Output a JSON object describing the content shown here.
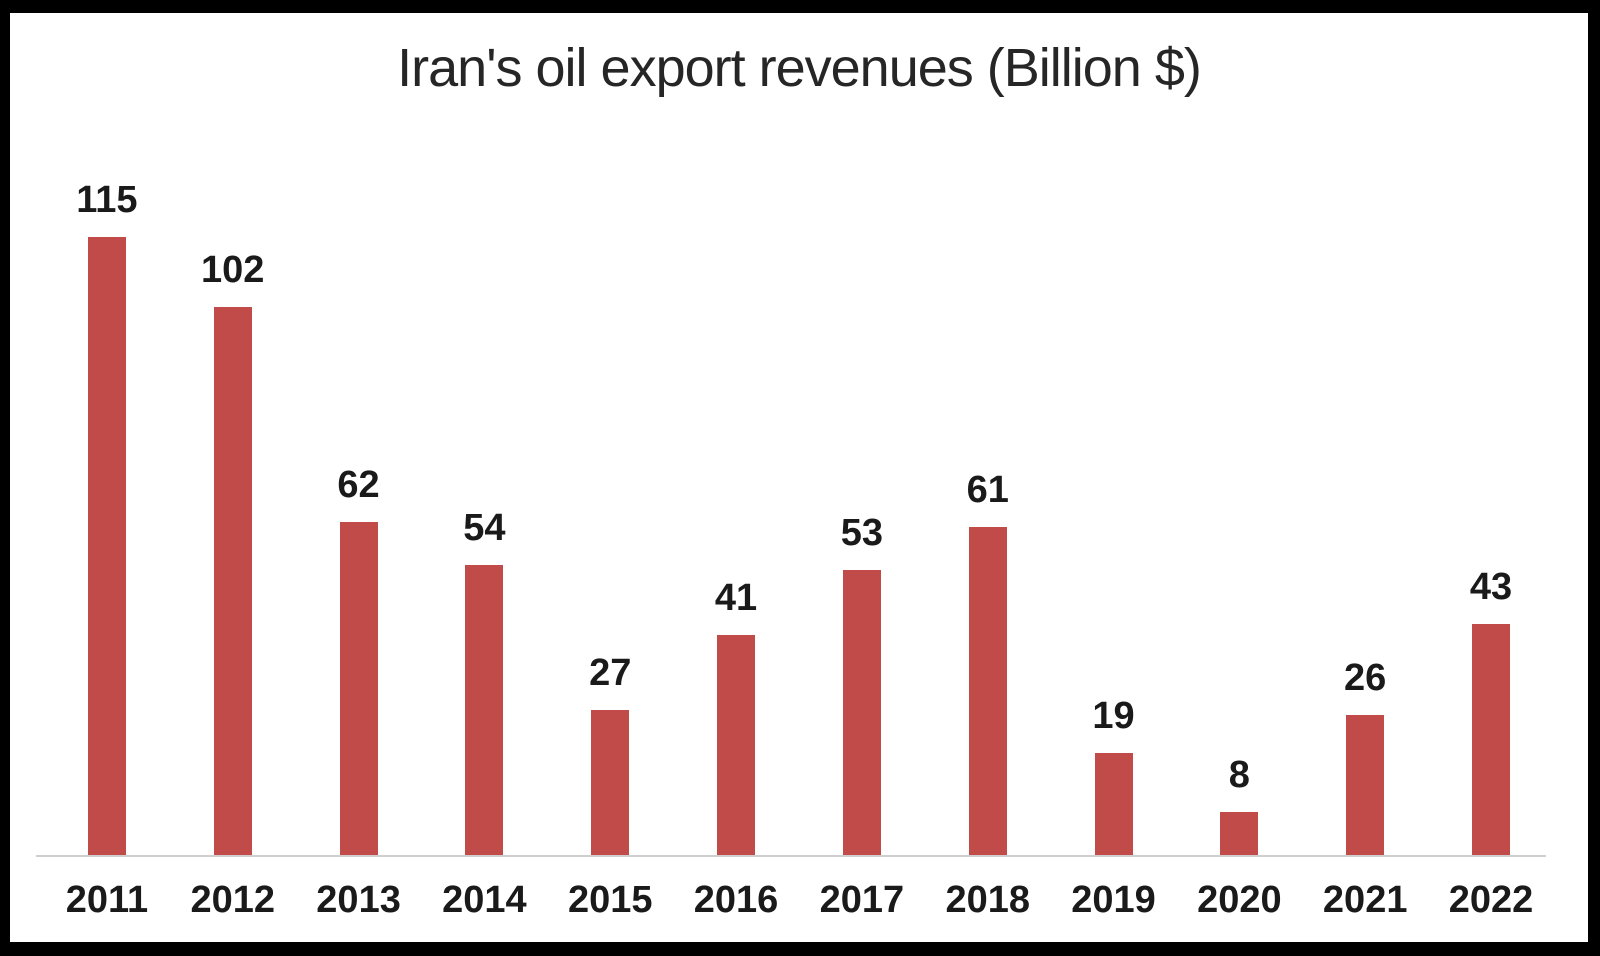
{
  "chart_data": {
    "type": "bar",
    "title": "Iran's oil export revenues (Billion $)",
    "categories": [
      "2011",
      "2012",
      "2013",
      "2014",
      "2015",
      "2016",
      "2017",
      "2018",
      "2019",
      "2020",
      "2021",
      "2022"
    ],
    "values": [
      115,
      102,
      62,
      54,
      27,
      41,
      53,
      61,
      19,
      8,
      26,
      43
    ],
    "xlabel": "",
    "ylabel": "",
    "ylim": [
      0,
      120
    ],
    "grid": false,
    "legend_position": "none",
    "data_labels": true,
    "bar_color": "#c04b48",
    "axis_line_color": "#cfcfcf",
    "data_label_color": "#1a1a1a",
    "title_color": "#262626",
    "background_color": "#ffffff",
    "frame_color": "#000000"
  }
}
